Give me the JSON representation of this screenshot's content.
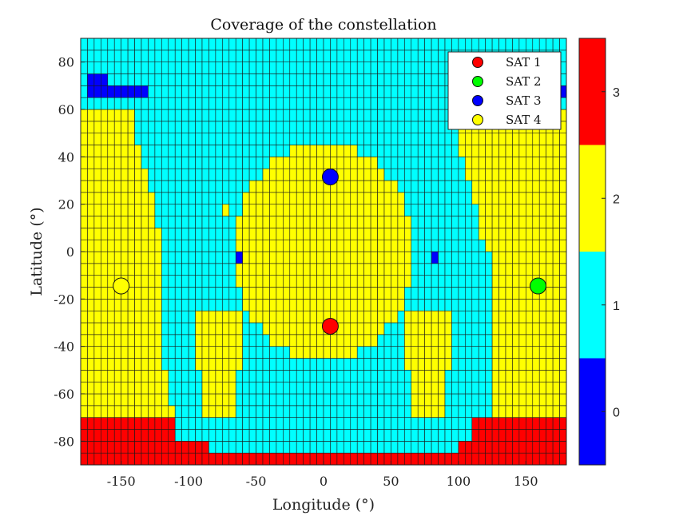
{
  "chart_data": {
    "type": "heatmap",
    "title": "Coverage of the constellation",
    "xlabel": "Longitude (°)",
    "ylabel": "Latitude (°)",
    "xlim": [
      -180,
      180
    ],
    "ylim": [
      -90,
      90
    ],
    "grid_step_deg": 5,
    "x_ticks": [
      -150,
      -100,
      -50,
      0,
      50,
      100,
      150
    ],
    "y_ticks": [
      -80,
      -60,
      -40,
      -20,
      0,
      20,
      40,
      60,
      80
    ],
    "colorbar": {
      "ticks": [
        0,
        1,
        2,
        3
      ],
      "clim": [
        -0.5,
        3.5
      ],
      "colors": [
        "#0000ff",
        "#00ffff",
        "#ffff00",
        "#ff0000"
      ]
    },
    "coverage_regions": {
      "value_outside_regions": 1,
      "yellow_value": 2,
      "central_yellow": {
        "lon_center": 0,
        "lat_center": 0,
        "lon_half_width": 65,
        "lat_top": 45,
        "lat_bottom": -45
      },
      "side_yellow_left": {
        "lon_from": -180,
        "lon_to": -120,
        "lat_from": -70,
        "lat_to": 62
      },
      "side_yellow_right": {
        "lon_from": 120,
        "lon_to": 180,
        "lat_from": -70,
        "lat_to": 62
      },
      "red_bottom": {
        "value": 3,
        "lat_to": -85,
        "side_lat_to": -70
      },
      "blue_cells": [
        {
          "lon": -175,
          "lat": 70
        },
        {
          "lon": -170,
          "lat": 70
        },
        {
          "lon": -165,
          "lat": 70
        },
        {
          "lon": -160,
          "lat": 65
        },
        {
          "lon": -155,
          "lat": 65
        },
        {
          "lon": -150,
          "lat": 65
        },
        {
          "lon": -145,
          "lat": 65
        },
        {
          "lon": -140,
          "lat": 65
        },
        {
          "lon": -135,
          "lat": 65
        },
        {
          "lon": -175,
          "lat": 65
        },
        {
          "lon": -170,
          "lat": 65
        },
        {
          "lon": -165,
          "lat": 65
        },
        {
          "lon": 175,
          "lat": 65
        },
        {
          "lon": -65,
          "lat": -5
        },
        {
          "lon": 80,
          "lat": -5
        }
      ]
    },
    "satellites": [
      {
        "name": "SAT 1",
        "lon": 5,
        "lat": -31.5,
        "color": "#ff0000"
      },
      {
        "name": "SAT 2",
        "lon": 159,
        "lat": -14.5,
        "color": "#00ff00"
      },
      {
        "name": "SAT 3",
        "lon": 5,
        "lat": 31.5,
        "color": "#0000ff"
      },
      {
        "name": "SAT 4",
        "lon": -150,
        "lat": -14.5,
        "color": "#ffff00"
      }
    ],
    "legend_position": "top-right",
    "grid": true
  }
}
